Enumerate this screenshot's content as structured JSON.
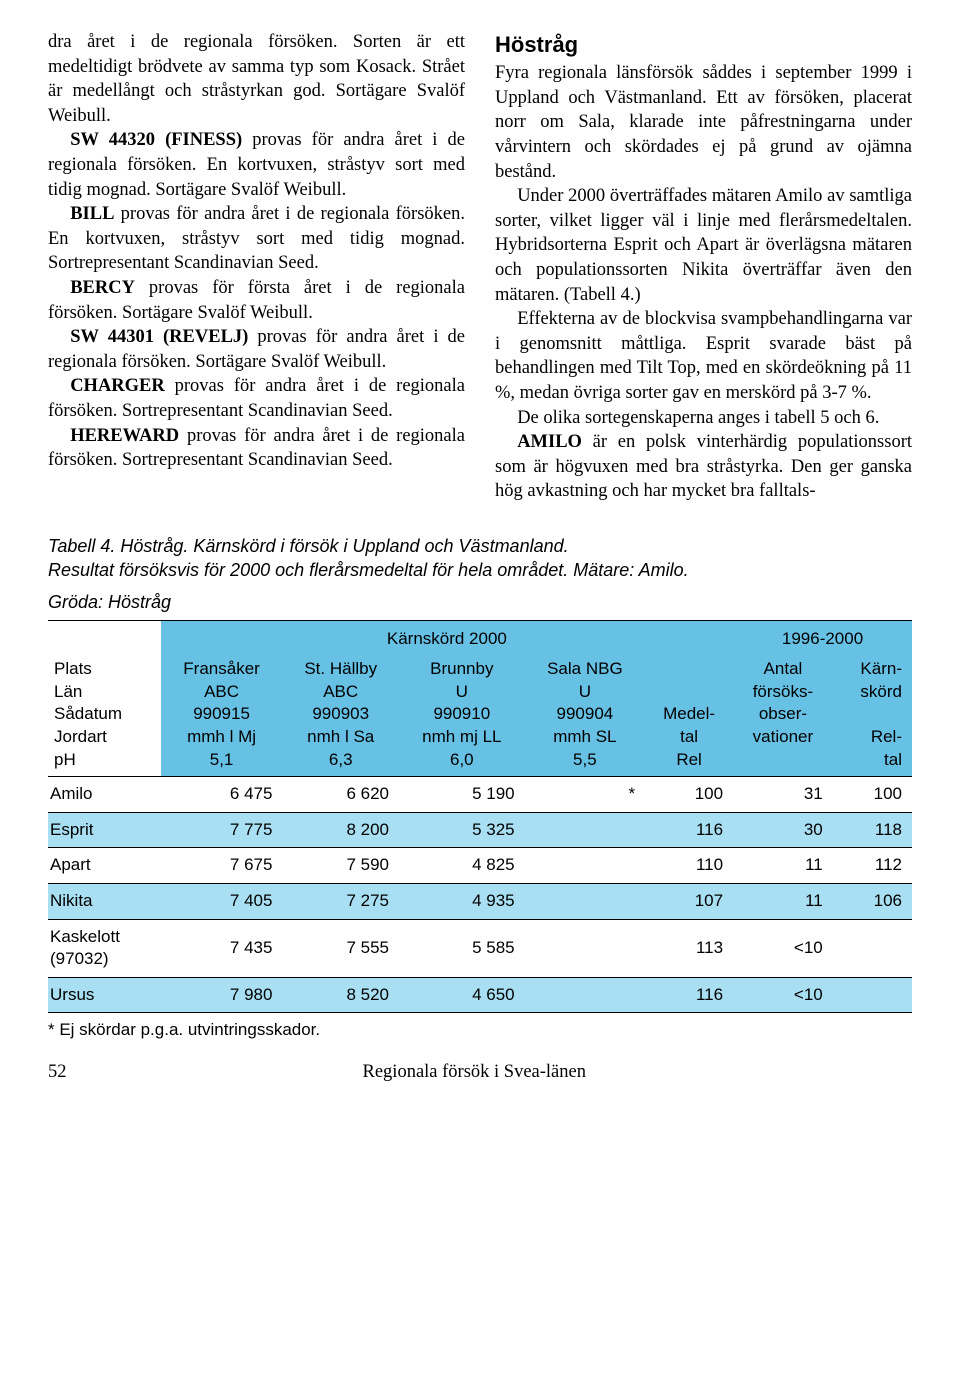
{
  "left_col": {
    "p1": "dra året i de regionala försöken. Sorten är ett medeltidigt brödvete av samma typ som Kosack. Strået är medellångt och stråstyrkan god. Sortägare Svalöf Weibull.",
    "p2a": "SW 44320 (FINESS)",
    "p2b": " provas för andra året i de regionala försöken. En kortvuxen, stråstyv sort med tidig mognad. Sortägare Svalöf Weibull.",
    "p3a": "BILL",
    "p3b": " provas för andra året i de regionala försöken. En kortvuxen, stråstyv sort med tidig mognad. Sortrepresentant Scandinavian Seed.",
    "p4a": "BERCY",
    "p4b": " provas för första året i de regionala försöken. Sortägare Svalöf Weibull.",
    "p5a": "SW 44301 (REVELJ)",
    "p5b": " provas för andra året i de regionala försöken. Sortägare Svalöf Weibull.",
    "p6a": "CHARGER",
    "p6b": " provas för andra året i de regionala försöken. Sortrepresentant Scandinavian Seed.",
    "p7a": "HEREWARD",
    "p7b": " provas för andra året i de regionala försöken. Sortrepresentant Scandinavian Seed."
  },
  "right_col": {
    "heading": "Höstråg",
    "p1": "Fyra regionala länsförsök såddes i september 1999 i Uppland och Västmanland. Ett av försöken, placerat norr om Sala, klarade inte påfrestningarna under vårvintern och skördades ej på grund av ojämna bestånd.",
    "p2": "Under 2000 överträffades mätaren Amilo av samtliga sorter, vilket ligger väl i linje med flerårsmedeltalen. Hybridsorterna Esprit och Apart är överlägsna mätaren och populationssorten Nikita överträffar även den mätaren. (Tabell 4.)",
    "p3": "Effekterna av de blockvisa svampbehandlingarna var i genomsnitt måttliga. Esprit svarade bäst på behandlingen med Tilt Top, med en skördeökning på 11 %, medan övriga sorter gav en merskörd på 3-7 %.",
    "p4": "De olika sortegenskaperna anges i tabell 5 och 6.",
    "p5a": "AMILO",
    "p5b": " är en polsk vinterhärdig populationssort som är högvuxen med bra stråstyrka. Den ger ganska hög avkastning och har mycket bra falltals-"
  },
  "table": {
    "caption_line1": "Tabell 4. Höstråg. Kärnskörd i försök i Uppland och Västmanland.",
    "caption_line2": "Resultat försöksvis för 2000 och flerårsmedeltal för hela området. Mätare: Amilo.",
    "crop": "Gröda: Höstråg",
    "super1": "Kärnskörd 2000",
    "super2": "1996-2000",
    "rowlabels": [
      "Plats",
      "Län",
      "Sådatum",
      "Jordart",
      "pH"
    ],
    "col1": [
      "Fransåker",
      "ABC",
      "990915",
      "mmh l Mj",
      "5,1"
    ],
    "col2": [
      "St. Hällby",
      "ABC",
      "990903",
      "nmh l Sa",
      "6,3"
    ],
    "col3": [
      "Brunnby",
      "U",
      "990910",
      "nmh mj LL",
      "6,0"
    ],
    "col4": [
      "Sala NBG",
      "U",
      "990904",
      "mmh SL",
      "5,5"
    ],
    "col5": [
      "",
      "",
      "",
      "Medel-",
      "tal",
      "Rel"
    ],
    "col6": [
      "Antal",
      "försöks-",
      "obser-",
      "vationer"
    ],
    "col7": [
      "Kärn-",
      "skörd",
      "",
      "Rel-",
      "tal"
    ],
    "rows": [
      {
        "name": "Amilo",
        "v": [
          "6 475",
          "6 620",
          "5 190",
          "*",
          "100",
          "31",
          "100"
        ]
      },
      {
        "name": "Esprit",
        "v": [
          "7 775",
          "8 200",
          "5 325",
          "",
          "116",
          "30",
          "118"
        ]
      },
      {
        "name": "Apart",
        "v": [
          "7 675",
          "7 590",
          "4 825",
          "",
          "110",
          "11",
          "112"
        ]
      },
      {
        "name": "Nikita",
        "v": [
          "7 405",
          "7 275",
          "4 935",
          "",
          "107",
          "11",
          "106"
        ]
      },
      {
        "name": "Kaskelott (97032)",
        "v": [
          "7 435",
          "7 555",
          "5 585",
          "",
          "113",
          "<10",
          ""
        ]
      },
      {
        "name": "Ursus",
        "v": [
          "7 980",
          "8 520",
          "4 650",
          "",
          "116",
          "<10",
          ""
        ]
      }
    ],
    "footnote": "* Ej skördar p.g.a. utvintringsskador."
  },
  "footer": {
    "page": "52",
    "title": "Regionala försök i Svea-länen"
  },
  "colors": {
    "header_bg": "#66c1e5",
    "row_even_bg": "#a9dff2",
    "row_odd_bg": "#ffffff"
  }
}
